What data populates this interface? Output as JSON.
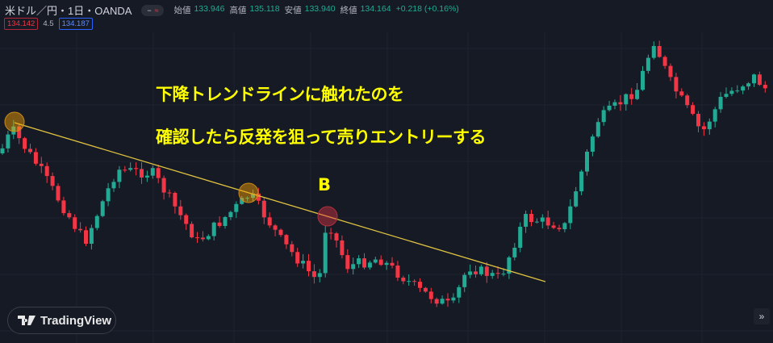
{
  "header": {
    "symbol": "米ドル／円・1日・OANDA",
    "toggle_minus": "−",
    "toggle_wave": "≈",
    "ohlc": [
      {
        "label": "始値",
        "value": "133.946"
      },
      {
        "label": "高値",
        "value": "135.118"
      },
      {
        "label": "安値",
        "value": "133.940"
      },
      {
        "label": "終値",
        "value": "134.164"
      }
    ],
    "change": "+0.218 (+0.16%)"
  },
  "quotes": {
    "sell": "134.142",
    "spread": "4.5",
    "buy": "134.187"
  },
  "annotations": {
    "line1": "下降トレンドラインに触れたのを",
    "line2": "確認したら反発を狙って売りエントリーする",
    "marker": "B"
  },
  "branding": {
    "logo_text": "TradingView"
  },
  "colors": {
    "up": "#22ab94",
    "down": "#f23645",
    "trendline": "#e0c341",
    "background": "#161a25",
    "annotation": "#ffff00"
  },
  "icons": {
    "scroll_right": "double-chevron-right-icon"
  }
}
